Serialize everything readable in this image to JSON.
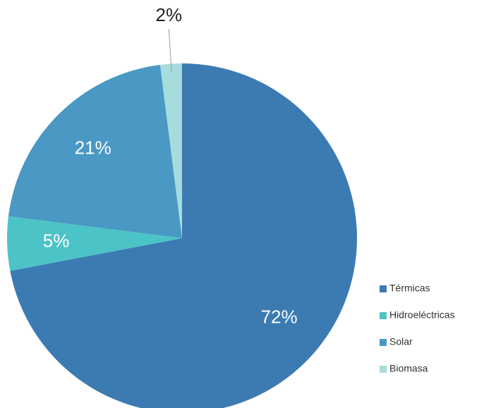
{
  "chart_data": {
    "type": "pie",
    "categories": [
      "Térmicas",
      "Hidroeléctricas",
      "Solar",
      "Biomasa"
    ],
    "values": [
      72,
      5,
      21,
      2
    ],
    "value_labels": [
      "72%",
      "5%",
      "21%",
      "2%"
    ],
    "colors": [
      "#3b7bb2",
      "#4cc3c6",
      "#4a98c4",
      "#a6dcdc"
    ],
    "legend": "right"
  }
}
